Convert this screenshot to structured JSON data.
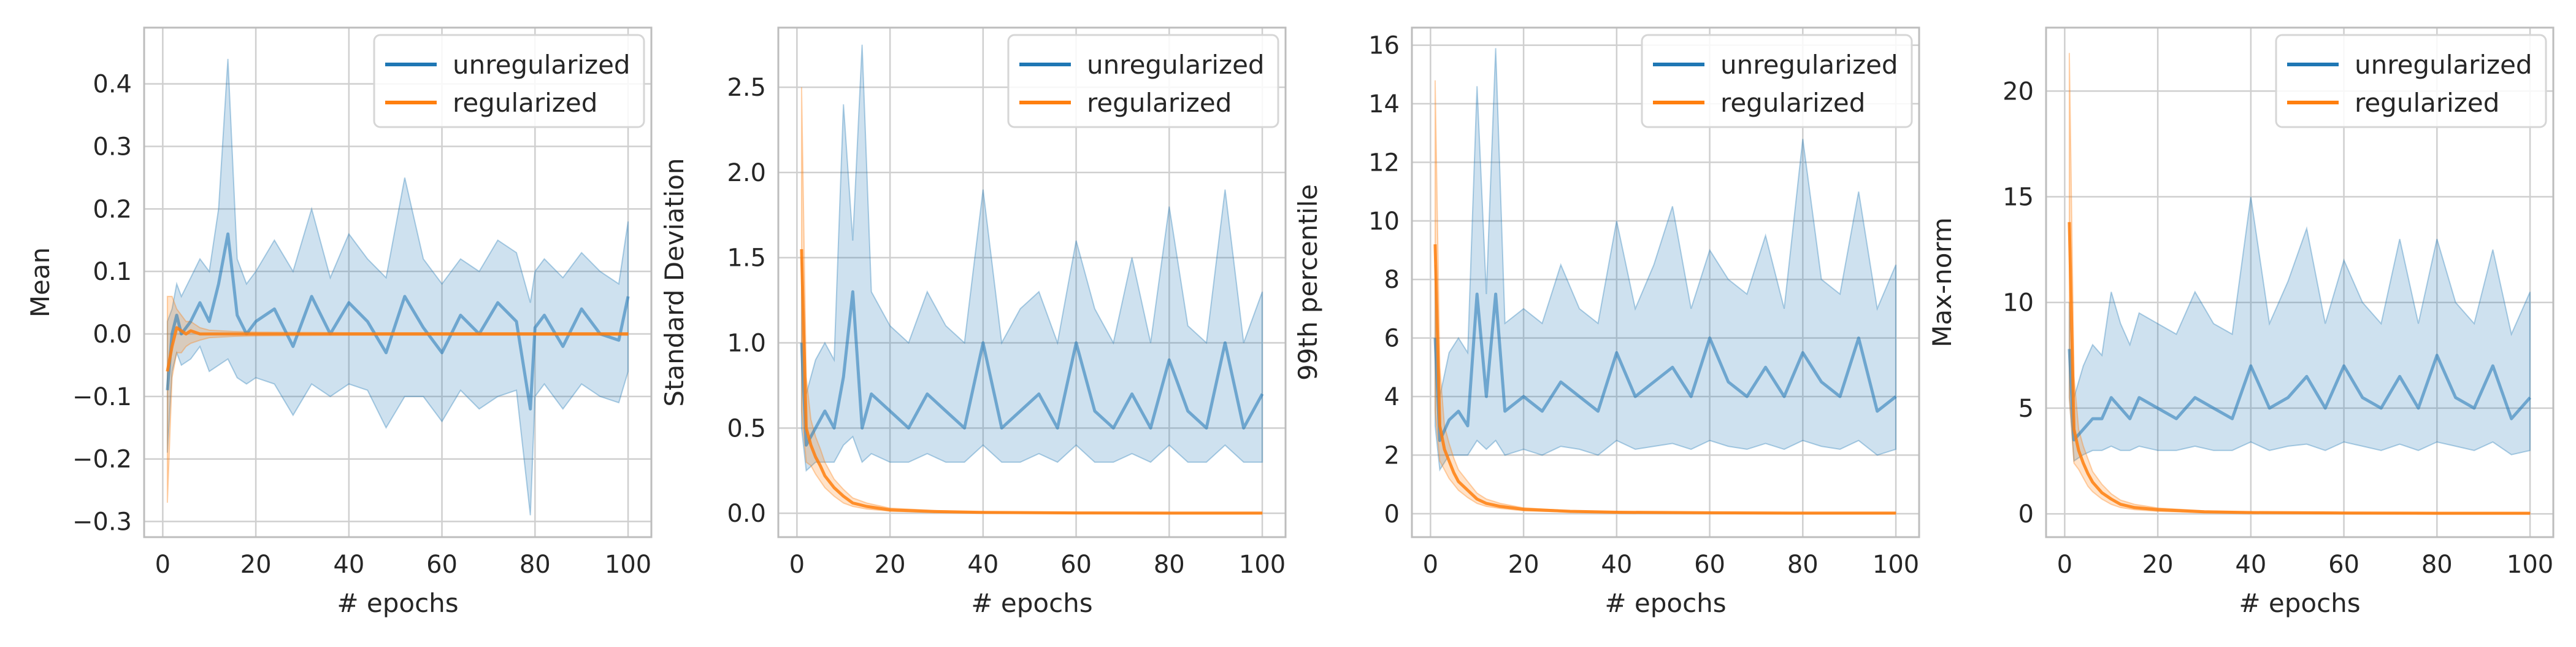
{
  "figure": {
    "panel_count": 4
  },
  "colors": {
    "unregularized": "#1f77b4",
    "regularized": "#ff7f0e",
    "grid": "#cfcfcf",
    "frame": "#bdbdbd"
  },
  "chart_data": [
    {
      "type": "line",
      "title": "",
      "xlabel": "# epochs",
      "ylabel": "Mean",
      "xlim": [
        -4,
        105
      ],
      "ylim": [
        -0.325,
        0.49
      ],
      "xticks": [
        0,
        20,
        40,
        60,
        80,
        100
      ],
      "yticks": [
        -0.3,
        -0.2,
        -0.1,
        0.0,
        0.1,
        0.2,
        0.3,
        0.4
      ],
      "ytick_labels": [
        "−0.3",
        "−0.2",
        "−0.1",
        "0.0",
        "0.1",
        "0.2",
        "0.3",
        "0.4"
      ],
      "legend": {
        "position": "top-right",
        "entries": [
          "unregularized",
          "regularized"
        ]
      },
      "series": [
        {
          "name": "unregularized",
          "x": [
            1,
            2,
            3,
            4,
            6,
            8,
            10,
            12,
            14,
            16,
            18,
            20,
            24,
            28,
            32,
            36,
            40,
            44,
            48,
            52,
            56,
            60,
            64,
            68,
            72,
            76,
            79,
            80,
            82,
            86,
            90,
            94,
            98,
            100
          ],
          "values": [
            -0.09,
            0.0,
            0.03,
            0.0,
            0.02,
            0.05,
            0.02,
            0.08,
            0.16,
            0.03,
            0.0,
            0.02,
            0.04,
            -0.02,
            0.06,
            0.0,
            0.05,
            0.02,
            -0.03,
            0.06,
            0.01,
            -0.03,
            0.03,
            0.0,
            0.05,
            0.02,
            -0.12,
            0.01,
            0.03,
            -0.02,
            0.04,
            0.0,
            -0.01,
            0.06
          ],
          "band_upper": [
            0.02,
            0.04,
            0.08,
            0.06,
            0.09,
            0.12,
            0.1,
            0.2,
            0.44,
            0.12,
            0.08,
            0.1,
            0.15,
            0.1,
            0.2,
            0.09,
            0.16,
            0.12,
            0.09,
            0.25,
            0.12,
            0.08,
            0.12,
            0.1,
            0.15,
            0.13,
            0.05,
            0.1,
            0.12,
            0.09,
            0.13,
            0.1,
            0.08,
            0.18
          ],
          "band_lower": [
            -0.19,
            -0.06,
            -0.03,
            -0.05,
            -0.04,
            -0.02,
            -0.06,
            -0.05,
            -0.04,
            -0.07,
            -0.08,
            -0.07,
            -0.08,
            -0.13,
            -0.08,
            -0.1,
            -0.08,
            -0.09,
            -0.15,
            -0.1,
            -0.1,
            -0.14,
            -0.09,
            -0.12,
            -0.1,
            -0.09,
            -0.29,
            -0.1,
            -0.08,
            -0.12,
            -0.08,
            -0.1,
            -0.11,
            -0.06
          ]
        },
        {
          "name": "regularized",
          "x": [
            1,
            2,
            3,
            4,
            5,
            6,
            8,
            10,
            15,
            20,
            40,
            60,
            80,
            100
          ],
          "values": [
            -0.06,
            -0.02,
            0.01,
            0.005,
            0.0,
            0.005,
            0.0,
            0.0,
            0.0,
            0.0,
            0.0,
            0.0,
            0.0,
            0.0
          ],
          "band_upper": [
            0.06,
            0.06,
            0.04,
            0.03,
            0.02,
            0.02,
            0.01,
            0.006,
            0.004,
            0.003,
            0.002,
            0.002,
            0.002,
            0.002
          ],
          "band_lower": [
            -0.27,
            -0.07,
            -0.03,
            -0.03,
            -0.02,
            -0.015,
            -0.01,
            -0.006,
            -0.004,
            -0.003,
            -0.002,
            -0.002,
            -0.002,
            -0.002
          ]
        }
      ]
    },
    {
      "type": "line",
      "title": "",
      "xlabel": "# epochs",
      "ylabel": "Standard Deviation",
      "xlim": [
        -4,
        105
      ],
      "ylim": [
        -0.14,
        2.85
      ],
      "xticks": [
        0,
        20,
        40,
        60,
        80,
        100
      ],
      "yticks": [
        0.0,
        0.5,
        1.0,
        1.5,
        2.0,
        2.5
      ],
      "ytick_labels": [
        "0.0",
        "0.5",
        "1.0",
        "1.5",
        "2.0",
        "2.5"
      ],
      "legend": {
        "position": "top-right",
        "entries": [
          "unregularized",
          "regularized"
        ]
      },
      "series": [
        {
          "name": "unregularized",
          "x": [
            1,
            2,
            4,
            6,
            8,
            10,
            12,
            14,
            16,
            20,
            24,
            28,
            32,
            36,
            40,
            44,
            48,
            52,
            56,
            60,
            64,
            68,
            72,
            76,
            80,
            84,
            88,
            92,
            96,
            100
          ],
          "values": [
            1.0,
            0.4,
            0.5,
            0.6,
            0.5,
            0.8,
            1.3,
            0.5,
            0.7,
            0.6,
            0.5,
            0.7,
            0.6,
            0.5,
            1.0,
            0.5,
            0.6,
            0.7,
            0.5,
            1.0,
            0.6,
            0.5,
            0.7,
            0.5,
            0.9,
            0.6,
            0.5,
            1.0,
            0.5,
            0.7
          ],
          "band_upper": [
            1.5,
            0.7,
            0.9,
            1.0,
            0.9,
            2.4,
            1.6,
            2.75,
            1.3,
            1.1,
            1.0,
            1.3,
            1.1,
            1.0,
            1.9,
            1.0,
            1.2,
            1.3,
            1.0,
            1.6,
            1.2,
            1.0,
            1.5,
            1.0,
            1.8,
            1.1,
            1.0,
            1.9,
            1.0,
            1.3
          ],
          "band_lower": [
            0.5,
            0.25,
            0.3,
            0.3,
            0.3,
            0.4,
            0.45,
            0.3,
            0.35,
            0.3,
            0.3,
            0.35,
            0.3,
            0.3,
            0.4,
            0.3,
            0.3,
            0.35,
            0.3,
            0.4,
            0.3,
            0.3,
            0.35,
            0.3,
            0.4,
            0.3,
            0.3,
            0.4,
            0.3,
            0.3
          ]
        },
        {
          "name": "regularized",
          "x": [
            1,
            2,
            3,
            4,
            5,
            6,
            8,
            10,
            12,
            15,
            20,
            30,
            40,
            60,
            80,
            100
          ],
          "values": [
            1.55,
            0.5,
            0.4,
            0.33,
            0.28,
            0.22,
            0.15,
            0.1,
            0.06,
            0.04,
            0.02,
            0.01,
            0.005,
            0.002,
            0.001,
            0.001
          ],
          "band_upper": [
            2.5,
            0.8,
            0.55,
            0.45,
            0.38,
            0.3,
            0.2,
            0.14,
            0.09,
            0.06,
            0.03,
            0.015,
            0.008,
            0.004,
            0.002,
            0.002
          ],
          "band_lower": [
            0.6,
            0.3,
            0.28,
            0.23,
            0.19,
            0.15,
            0.1,
            0.06,
            0.04,
            0.025,
            0.012,
            0.006,
            0.003,
            0.001,
            0.0,
            0.0
          ]
        }
      ]
    },
    {
      "type": "line",
      "title": "",
      "xlabel": "# epochs",
      "ylabel": "99th percentile",
      "xlim": [
        -4,
        105
      ],
      "ylim": [
        -0.8,
        16.6
      ],
      "xticks": [
        0,
        20,
        40,
        60,
        80,
        100
      ],
      "yticks": [
        0,
        2,
        4,
        6,
        8,
        10,
        12,
        14,
        16
      ],
      "ytick_labels": [
        "0",
        "2",
        "4",
        "6",
        "8",
        "10",
        "12",
        "14",
        "16"
      ],
      "legend": {
        "position": "top-right",
        "entries": [
          "unregularized",
          "regularized"
        ]
      },
      "series": [
        {
          "name": "unregularized",
          "x": [
            1,
            2,
            4,
            6,
            8,
            10,
            12,
            14,
            16,
            20,
            24,
            28,
            32,
            36,
            40,
            44,
            48,
            52,
            56,
            60,
            64,
            68,
            72,
            76,
            80,
            84,
            88,
            92,
            96,
            100
          ],
          "values": [
            6.0,
            2.5,
            3.2,
            3.5,
            3.0,
            7.5,
            4.0,
            7.5,
            3.5,
            4.0,
            3.5,
            4.5,
            4.0,
            3.5,
            5.5,
            4.0,
            4.5,
            5.0,
            4.0,
            6.0,
            4.5,
            4.0,
            5.0,
            4.0,
            5.5,
            4.5,
            4.0,
            6.0,
            3.5,
            4.0
          ],
          "band_upper": [
            8.5,
            4.0,
            5.5,
            6.0,
            5.5,
            14.6,
            7.5,
            15.9,
            6.5,
            7.0,
            6.5,
            8.5,
            7.0,
            6.5,
            10.0,
            7.0,
            8.5,
            10.5,
            7.0,
            9.0,
            8.0,
            7.5,
            9.5,
            7.0,
            12.8,
            8.0,
            7.5,
            11.0,
            7.0,
            8.5
          ],
          "band_lower": [
            3.0,
            1.5,
            2.0,
            2.0,
            2.0,
            2.5,
            2.2,
            2.5,
            2.0,
            2.2,
            2.0,
            2.3,
            2.2,
            2.0,
            2.5,
            2.2,
            2.3,
            2.4,
            2.2,
            2.5,
            2.3,
            2.2,
            2.4,
            2.2,
            2.5,
            2.3,
            2.2,
            2.5,
            2.0,
            2.2
          ]
        },
        {
          "name": "regularized",
          "x": [
            1,
            2,
            3,
            4,
            5,
            6,
            8,
            10,
            12,
            15,
            20,
            30,
            40,
            60,
            80,
            100
          ],
          "values": [
            9.2,
            3.0,
            2.2,
            1.8,
            1.4,
            1.1,
            0.8,
            0.5,
            0.35,
            0.25,
            0.15,
            0.08,
            0.05,
            0.03,
            0.02,
            0.02
          ],
          "band_upper": [
            14.8,
            5.0,
            3.0,
            2.4,
            1.9,
            1.5,
            1.1,
            0.7,
            0.5,
            0.35,
            0.2,
            0.1,
            0.07,
            0.04,
            0.03,
            0.03
          ],
          "band_lower": [
            3.5,
            1.8,
            1.5,
            1.2,
            1.0,
            0.8,
            0.55,
            0.35,
            0.25,
            0.18,
            0.1,
            0.06,
            0.03,
            0.02,
            0.01,
            0.01
          ]
        }
      ]
    },
    {
      "type": "line",
      "title": "",
      "xlabel": "# epochs",
      "ylabel": "Max-norm",
      "xlim": [
        -4,
        105
      ],
      "ylim": [
        -1.1,
        23.0
      ],
      "xticks": [
        0,
        20,
        40,
        60,
        80,
        100
      ],
      "yticks": [
        0,
        5,
        10,
        15,
        20
      ],
      "ytick_labels": [
        "0",
        "5",
        "10",
        "15",
        "20"
      ],
      "legend": {
        "position": "top-right",
        "entries": [
          "unregularized",
          "regularized"
        ]
      },
      "series": [
        {
          "name": "unregularized",
          "x": [
            1,
            2,
            4,
            6,
            8,
            10,
            12,
            14,
            16,
            20,
            24,
            28,
            32,
            36,
            40,
            44,
            48,
            52,
            56,
            60,
            64,
            68,
            72,
            76,
            80,
            84,
            88,
            92,
            96,
            100
          ],
          "values": [
            7.8,
            3.5,
            4.0,
            4.5,
            4.5,
            5.5,
            5.0,
            4.5,
            5.5,
            5.0,
            4.5,
            5.5,
            5.0,
            4.5,
            7.0,
            5.0,
            5.5,
            6.5,
            5.0,
            7.0,
            5.5,
            5.0,
            6.5,
            5.0,
            7.5,
            5.5,
            5.0,
            7.0,
            4.5,
            5.5
          ],
          "band_upper": [
            10.0,
            5.5,
            7.0,
            8.0,
            7.5,
            10.5,
            9.0,
            8.0,
            9.5,
            9.0,
            8.5,
            10.5,
            9.0,
            8.5,
            15.0,
            9.0,
            11.0,
            13.5,
            9.0,
            12.0,
            10.0,
            9.0,
            13.0,
            9.0,
            13.0,
            10.0,
            9.0,
            12.5,
            8.5,
            10.5
          ],
          "band_lower": [
            5.5,
            2.5,
            2.8,
            3.0,
            3.0,
            3.2,
            3.0,
            3.0,
            3.2,
            3.0,
            3.0,
            3.2,
            3.0,
            3.0,
            3.4,
            3.0,
            3.2,
            3.3,
            3.0,
            3.4,
            3.2,
            3.0,
            3.3,
            3.0,
            3.4,
            3.2,
            3.0,
            3.4,
            2.8,
            3.0
          ]
        },
        {
          "name": "regularized",
          "x": [
            1,
            2,
            3,
            4,
            5,
            6,
            8,
            10,
            12,
            15,
            20,
            30,
            40,
            60,
            80,
            100
          ],
          "values": [
            13.8,
            4.0,
            3.0,
            2.4,
            1.9,
            1.5,
            1.0,
            0.7,
            0.45,
            0.3,
            0.2,
            0.1,
            0.06,
            0.04,
            0.03,
            0.03
          ],
          "band_upper": [
            21.8,
            6.5,
            4.0,
            3.2,
            2.6,
            2.0,
            1.4,
            0.95,
            0.65,
            0.45,
            0.28,
            0.14,
            0.09,
            0.06,
            0.05,
            0.05
          ],
          "band_lower": [
            5.5,
            2.4,
            2.1,
            1.7,
            1.3,
            1.05,
            0.7,
            0.45,
            0.3,
            0.2,
            0.12,
            0.06,
            0.04,
            0.02,
            0.01,
            0.01
          ]
        }
      ]
    }
  ]
}
